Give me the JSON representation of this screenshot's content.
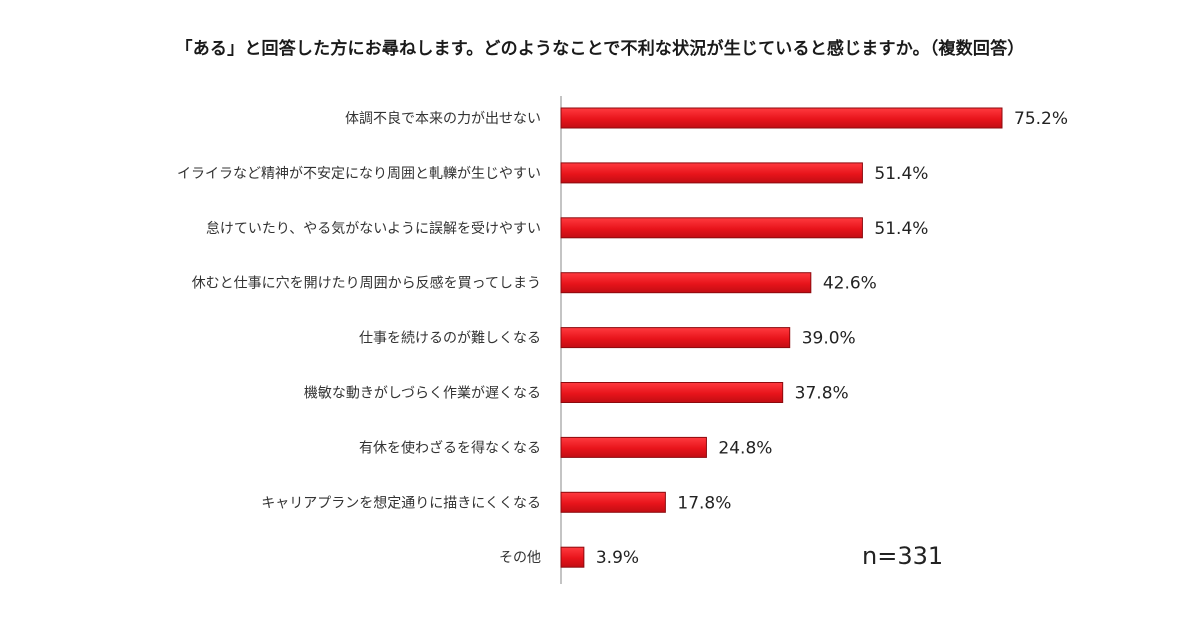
{
  "chart_data": {
    "type": "bar",
    "orientation": "horizontal",
    "title": "「ある」と回答した方にお尋ねします。どのようなことで不利な状況が生じていると感じますか。（複数回答）",
    "categories": [
      "体調不良で本来の力が出せない",
      "イライラなど精神が不安定になり周囲と軋轢が生じやすい",
      "怠けていたり、やる気がないように誤解を受けやすい",
      "休むと仕事に穴を開けたり周囲から反感を買ってしまう",
      "仕事を続けるのが難しくなる",
      "機敏な動きがしづらく作業が遅くなる",
      "有休を使わざるを得なくなる",
      "キャリアプランを想定通りに描きにくくなる",
      "その他"
    ],
    "values": [
      75.2,
      51.4,
      51.4,
      42.6,
      39.0,
      37.8,
      24.8,
      17.8,
      3.9
    ],
    "value_labels": [
      "75.2%",
      "51.4%",
      "51.4%",
      "42.6%",
      "39.0%",
      "37.8%",
      "24.8%",
      "17.8%",
      "3.9%"
    ],
    "xlim": [
      0,
      80
    ],
    "unit": "%",
    "grid": false,
    "bar_color": "#e8141b",
    "bar_edge_color": "#8c0a0e",
    "sample_size_label": "n=331"
  }
}
